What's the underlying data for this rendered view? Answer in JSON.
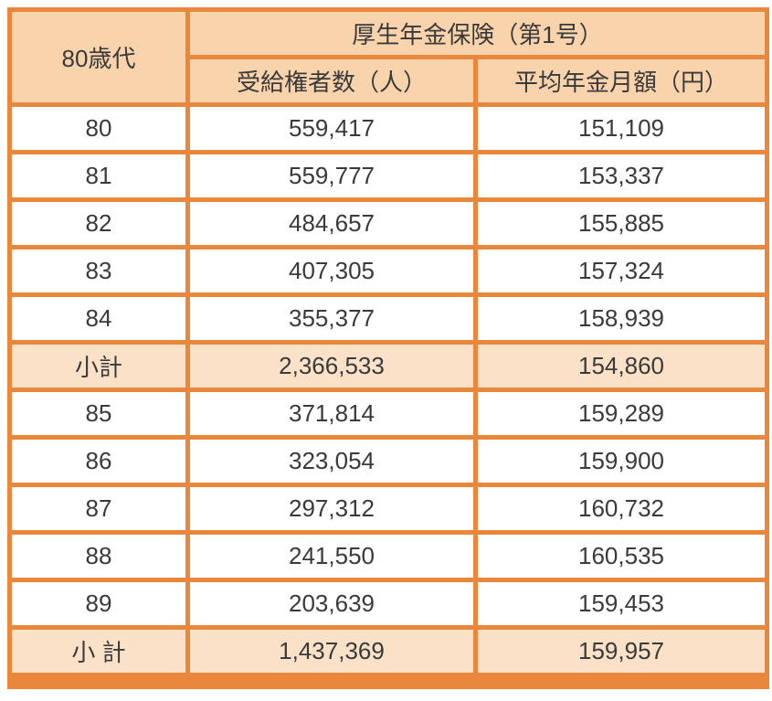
{
  "table": {
    "corner_header": "80歳代",
    "group_header": "厚生年金保険（第1号）",
    "col_headers": [
      "受給権者数（人）",
      "平均年金月額（円）"
    ],
    "rows": [
      {
        "label": "80",
        "beneficiaries": "559,417",
        "avg_monthly": "151,109",
        "is_subtotal": false
      },
      {
        "label": "81",
        "beneficiaries": "559,777",
        "avg_monthly": "153,337",
        "is_subtotal": false
      },
      {
        "label": "82",
        "beneficiaries": "484,657",
        "avg_monthly": "155,885",
        "is_subtotal": false
      },
      {
        "label": "83",
        "beneficiaries": "407,305",
        "avg_monthly": "157,324",
        "is_subtotal": false
      },
      {
        "label": "84",
        "beneficiaries": "355,377",
        "avg_monthly": "158,939",
        "is_subtotal": false
      },
      {
        "label": "小計",
        "beneficiaries": "2,366,533",
        "avg_monthly": "154,860",
        "is_subtotal": true
      },
      {
        "label": "85",
        "beneficiaries": "371,814",
        "avg_monthly": "159,289",
        "is_subtotal": false
      },
      {
        "label": "86",
        "beneficiaries": "323,054",
        "avg_monthly": "159,900",
        "is_subtotal": false
      },
      {
        "label": "87",
        "beneficiaries": "297,312",
        "avg_monthly": "160,732",
        "is_subtotal": false
      },
      {
        "label": "88",
        "beneficiaries": "241,550",
        "avg_monthly": "160,535",
        "is_subtotal": false
      },
      {
        "label": "89",
        "beneficiaries": "203,639",
        "avg_monthly": "159,453",
        "is_subtotal": false
      },
      {
        "label": "小 計",
        "beneficiaries": "1,437,369",
        "avg_monthly": "159,957",
        "is_subtotal": true
      }
    ],
    "colors": {
      "border": "#e9873d",
      "header_bg": "#f9d3ac",
      "subtotal_bg": "#fae1c8",
      "text": "#3a3a3a"
    }
  }
}
